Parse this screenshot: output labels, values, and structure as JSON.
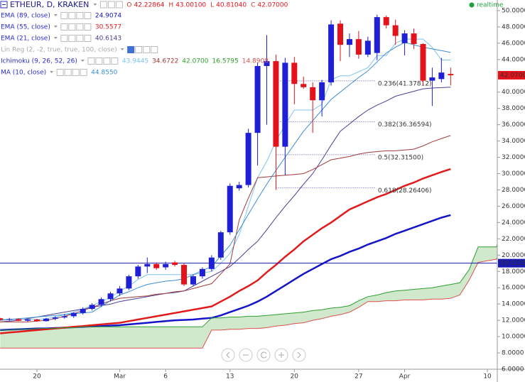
{
  "header": {
    "symbol": "ETHEUR, D, KRAKEN",
    "ohlc": [
      {
        "key": "O",
        "value": "42.22864"
      },
      {
        "key": "H",
        "value": "43.00100"
      },
      {
        "key": "L",
        "value": "40.81040"
      },
      {
        "key": "C",
        "value": "42.07000"
      }
    ],
    "status": "realtime"
  },
  "chart_data": {
    "type": "candlestick",
    "categories": [
      null,
      null,
      null,
      null,
      "20",
      null,
      null,
      null,
      null,
      null,
      null,
      null,
      null,
      "Mar",
      null,
      null,
      null,
      null,
      "6",
      null,
      null,
      null,
      null,
      null,
      null,
      "13",
      null,
      null,
      null,
      null,
      null,
      null,
      "20",
      null,
      null,
      null,
      null,
      null,
      null,
      "27",
      null,
      null,
      null,
      null,
      "Apr",
      null,
      null,
      null,
      null,
      null,
      null,
      null,
      null,
      "10",
      null,
      null,
      null
    ],
    "open": [
      12.25,
      12.05,
      12.15,
      11.95,
      12.1,
      11.9,
      12.2,
      12.35,
      12.5,
      12.9,
      13.4,
      13.9,
      14.6,
      15.3,
      15.9,
      17.4,
      18.6,
      18.9,
      18.5,
      19.1,
      18.8,
      16.4,
      17.4,
      18.3,
      19.7,
      22.8,
      28.2,
      28.6,
      35.0,
      43.2,
      43.8,
      33.3,
      43.6,
      41.0,
      40.6,
      39.0,
      41.2,
      48.4,
      45.8,
      46.5,
      44.6,
      44.8,
      49.2,
      48.2,
      46.0,
      47.2,
      45.9,
      41.4,
      41.6,
      42.22864,
      null,
      null,
      null,
      null,
      null,
      null,
      null
    ],
    "high": [
      12.3,
      12.3,
      12.25,
      12.2,
      12.2,
      12.3,
      12.5,
      12.8,
      13.0,
      13.6,
      14.1,
      14.8,
      15.5,
      16.2,
      17.6,
      18.8,
      19.7,
      19.1,
      19.2,
      19.3,
      19.0,
      17.6,
      18.5,
      20.0,
      23.0,
      28.8,
      29.0,
      35.5,
      43.6,
      47.0,
      44.6,
      44.2,
      44.3,
      41.9,
      41.2,
      41.5,
      48.8,
      48.8,
      47.2,
      47.5,
      46.8,
      49.5,
      49.4,
      48.9,
      47.6,
      47.8,
      46.0,
      43.0,
      44.2,
      43.001,
      null,
      null,
      null,
      null,
      null,
      null,
      null
    ],
    "low": [
      11.95,
      11.95,
      11.9,
      11.85,
      11.8,
      11.85,
      12.0,
      12.2,
      12.3,
      12.7,
      13.2,
      13.7,
      14.3,
      15.0,
      15.7,
      17.1,
      17.8,
      18.2,
      18.2,
      18.6,
      16.2,
      16.2,
      17.1,
      18.0,
      19.4,
      22.5,
      27.9,
      28.3,
      31.0,
      36.0,
      28.0,
      29.8,
      38.5,
      40.4,
      35.0,
      37.0,
      40.8,
      43.8,
      44.3,
      44.1,
      44.3,
      43.9,
      47.8,
      45.8,
      44.5,
      45.3,
      40.8,
      38.3,
      41.2,
      40.8104,
      null,
      null,
      null,
      null,
      null,
      null,
      null
    ],
    "close": [
      12.05,
      12.15,
      11.95,
      12.1,
      11.9,
      12.2,
      12.35,
      12.5,
      12.9,
      13.4,
      13.9,
      14.6,
      15.3,
      15.9,
      17.4,
      18.6,
      18.9,
      18.4,
      18.9,
      18.8,
      16.4,
      17.4,
      18.3,
      19.7,
      22.8,
      28.5,
      28.6,
      35.0,
      43.2,
      43.8,
      33.3,
      43.6,
      41.0,
      40.6,
      39.0,
      41.2,
      48.3,
      45.8,
      46.5,
      44.6,
      46.3,
      49.2,
      48.2,
      46.9,
      47.2,
      45.9,
      41.4,
      41.8,
      42.4,
      42.07,
      null,
      null,
      null,
      null,
      null,
      null,
      null
    ],
    "up_color": "#1f1fd6",
    "down_color": "#e3121b",
    "ylim": [
      6,
      51.3
    ],
    "yticks": [
      {
        "value": 6,
        "label": "6.0000"
      },
      {
        "value": 8,
        "label": "8.0000"
      },
      {
        "value": 10,
        "label": "10.0000"
      },
      {
        "value": 12,
        "label": "12.0000"
      },
      {
        "value": 14,
        "label": "14.0000"
      },
      {
        "value": 16,
        "label": "16.0000"
      },
      {
        "value": 18,
        "label": "18.0000"
      },
      {
        "value": 20,
        "label": "20.0000"
      },
      {
        "value": 22,
        "label": "22.0000"
      },
      {
        "value": 24,
        "label": "24.0000"
      },
      {
        "value": 26,
        "label": "26.0000"
      },
      {
        "value": 28,
        "label": "28.0000"
      },
      {
        "value": 30,
        "label": "30.0000"
      },
      {
        "value": 32,
        "label": "32.0000"
      },
      {
        "value": 34,
        "label": "34.0000"
      },
      {
        "value": 36,
        "label": "36.0000"
      },
      {
        "value": 38,
        "label": "38.0000"
      },
      {
        "value": 40,
        "label": "40.0000"
      },
      {
        "value": 42,
        "label": "42.0000"
      },
      {
        "value": 44,
        "label": "44.0000"
      },
      {
        "value": 46,
        "label": "46.0000"
      },
      {
        "value": 48,
        "label": "48.0000"
      },
      {
        "value": 50,
        "label": "50.0000"
      }
    ],
    "last_price": {
      "value": 42.07,
      "label": "42.0700"
    },
    "hline": {
      "value": 19.0126,
      "label": "19.0126",
      "color": "#1a1ab0"
    },
    "fib_levels": [
      {
        "label": "0.236(41.37812)",
        "value": 41.37812
      },
      {
        "label": "0.382(36.36594)",
        "value": 36.36594
      },
      {
        "label": "0.5(32.31500)",
        "value": 32.315
      },
      {
        "label": "0.618(28.26406)",
        "value": 28.26406
      }
    ],
    "indicators": [
      {
        "name": "EMA (89, close)",
        "lines": [
          {
            "last": "24.9074",
            "color": "#1515c8",
            "width": 2.5,
            "values": [
              10.8,
              10.85,
              10.9,
              10.95,
              11.0,
              11.0,
              11.05,
              11.1,
              11.15,
              11.2,
              11.25,
              11.3,
              11.35,
              11.4,
              11.5,
              11.6,
              11.7,
              11.8,
              11.9,
              12.0,
              12.05,
              12.1,
              12.2,
              12.3,
              12.6,
              13.0,
              13.4,
              13.8,
              14.3,
              14.9,
              15.6,
              16.3,
              17.0,
              17.7,
              18.3,
              18.9,
              19.5,
              19.9,
              20.4,
              20.8,
              21.3,
              21.7,
              22.1,
              22.6,
              23.0,
              23.4,
              23.8,
              24.2,
              24.6,
              24.91,
              null,
              null,
              null,
              null,
              null,
              null,
              null
            ]
          }
        ]
      },
      {
        "name": "EMA (55, close)",
        "lines": [
          {
            "last": "30.5577",
            "color": "#e31a1c",
            "width": 2.5,
            "values": [
              10.4,
              10.5,
              10.6,
              10.7,
              10.8,
              10.9,
              11.0,
              11.1,
              11.2,
              11.3,
              11.4,
              11.5,
              11.6,
              11.7,
              11.9,
              12.1,
              12.3,
              12.5,
              12.7,
              12.9,
              13.1,
              13.3,
              13.5,
              13.7,
              14.3,
              14.9,
              15.6,
              16.2,
              16.9,
              17.9,
              18.8,
              19.8,
              20.7,
              21.7,
              22.5,
              23.3,
              24.0,
              24.8,
              25.6,
              26.1,
              26.6,
              27.1,
              27.5,
              28.0,
              28.5,
              28.9,
              29.4,
              29.8,
              30.2,
              30.56,
              null,
              null,
              null,
              null,
              null,
              null,
              null
            ]
          }
        ]
      },
      {
        "name": "EMA (21, close)",
        "lines": [
          {
            "last": "40.6143",
            "color": "#4b3f94",
            "width": 1,
            "values": [
              11.8,
              11.9,
              12.0,
              12.2,
              12.4,
              12.6,
              12.8,
              13.0,
              13.2,
              13.4,
              13.6,
              13.8,
              14.0,
              14.3,
              14.5,
              14.7,
              14.9,
              15.1,
              15.3,
              15.4,
              15.6,
              16.2,
              16.8,
              17.4,
              18.0,
              18.6,
              19.6,
              20.7,
              21.7,
              23.1,
              24.6,
              26.0,
              27.3,
              28.7,
              30.0,
              31.7,
              33.5,
              35.2,
              36.1,
              37.0,
              37.8,
              38.4,
              38.9,
              39.5,
              39.8,
              40.1,
              40.4,
              40.5,
              40.55,
              40.61,
              null,
              null,
              null,
              null,
              null,
              null,
              null
            ]
          }
        ]
      },
      {
        "name": "Lin Reg (2, -2, true, true, 100, close)",
        "muted": true,
        "lines": []
      },
      {
        "name": "Ichimoku (9, 26, 52, 26)",
        "lines": [
          {
            "last": "43.9445",
            "color": "#7cc4f2",
            "width": 1,
            "values": [
              12.1,
              12.1,
              12.1,
              12.1,
              12.1,
              12.2,
              12.4,
              12.7,
              13.0,
              13.4,
              13.8,
              14.3,
              14.8,
              15.6,
              16.2,
              17.0,
              17.6,
              17.6,
              17.6,
              17.6,
              17.6,
              17.6,
              17.8,
              18.0,
              19.0,
              20.2,
              22.5,
              26.0,
              29.5,
              31.5,
              34.0,
              36.0,
              37.8,
              37.8,
              37.8,
              38.5,
              41.5,
              42.0,
              42.0,
              42.5,
              43.0,
              44.5,
              44.5,
              46.0,
              46.5,
              46.5,
              46.5,
              45.5,
              43.94,
              43.94,
              null,
              null,
              null,
              null,
              null,
              null,
              null
            ]
          },
          {
            "last": "34.6722",
            "color": "#a33b3b",
            "width": 1,
            "values": [
              11.8,
              11.8,
              11.8,
              11.8,
              11.9,
              12.0,
              12.2,
              12.5,
              12.8,
              13.2,
              13.6,
              14.0,
              14.4,
              14.7,
              14.8,
              14.9,
              15.0,
              15.2,
              15.3,
              15.5,
              15.6,
              15.9,
              16.2,
              16.5,
              17.7,
              18.9,
              24.3,
              27.0,
              29.5,
              29.6,
              29.7,
              29.8,
              29.9,
              30.0,
              30.5,
              31.1,
              31.7,
              31.9,
              32.1,
              32.4,
              32.6,
              32.7,
              32.8,
              32.8,
              32.9,
              33.0,
              33.4,
              33.9,
              34.3,
              34.67,
              null,
              null,
              null,
              null,
              null,
              null,
              null
            ]
          },
          {
            "last": "42.0700",
            "color": "#2e9e2e"
          },
          {
            "last": "16.5795",
            "color": "#2e9e2e",
            "width": 1,
            "cloud": "top",
            "values": [
              10.8,
              10.8,
              10.9,
              10.9,
              11.0,
              11.0,
              11.0,
              11.1,
              11.1,
              11.2,
              11.2,
              11.2,
              11.2,
              11.2,
              11.2,
              11.2,
              11.2,
              11.2,
              11.2,
              11.2,
              11.2,
              11.2,
              11.2,
              12.3,
              12.3,
              12.4,
              12.4,
              12.5,
              12.5,
              12.6,
              12.7,
              12.8,
              12.9,
              13.0,
              13.2,
              13.3,
              13.5,
              13.6,
              13.8,
              14.4,
              14.9,
              15.1,
              15.4,
              15.6,
              15.7,
              15.8,
              15.9,
              16.0,
              16.2,
              16.4,
              16.6,
              18.2,
              21.0,
              21.0,
              21.0,
              26.0,
              28.8
            ]
          },
          {
            "last": "14.8908",
            "color": "#d9534f",
            "width": 1,
            "cloud": "bottom",
            "values": [
              8.6,
              8.6,
              8.6,
              8.6,
              8.6,
              8.6,
              8.6,
              8.6,
              8.6,
              8.6,
              8.6,
              8.6,
              8.6,
              8.6,
              8.6,
              8.6,
              8.6,
              8.6,
              8.6,
              8.6,
              8.6,
              8.6,
              8.6,
              10.8,
              10.8,
              10.9,
              10.9,
              11.0,
              11.0,
              11.1,
              11.3,
              11.4,
              11.6,
              11.7,
              12.0,
              12.2,
              12.5,
              12.7,
              13.0,
              13.6,
              14.3,
              14.3,
              14.4,
              14.4,
              14.5,
              14.5,
              14.5,
              14.6,
              14.6,
              14.7,
              15.1,
              16.9,
              19.1,
              19.3,
              19.5,
              23.0,
              26.9
            ]
          }
        ]
      },
      {
        "name": "MA (10, close)",
        "lines": [
          {
            "last": "44.8550",
            "color": "#3d8fd6",
            "width": 1,
            "values": [
              12.0,
              12.1,
              12.2,
              12.3,
              12.4,
              12.5,
              12.6,
              12.7,
              12.8,
              12.9,
              13.0,
              13.7,
              14.4,
              15.1,
              15.5,
              16.0,
              16.4,
              16.6,
              16.8,
              16.9,
              17.1,
              17.6,
              18.1,
              18.6,
              19.9,
              21.2,
              23.1,
              25.0,
              26.9,
              28.7,
              30.4,
              32.0,
              33.6,
              35.2,
              36.5,
              37.8,
              39.1,
              40.0,
              40.9,
              41.8,
              42.6,
              43.7,
              44.8,
              45.5,
              46.1,
              45.8,
              45.5,
              45.3,
              45.1,
              44.86,
              null,
              null,
              null,
              null,
              null,
              null,
              null
            ]
          }
        ]
      }
    ],
    "cloud_color": "rgba(120,190,110,0.35)"
  }
}
